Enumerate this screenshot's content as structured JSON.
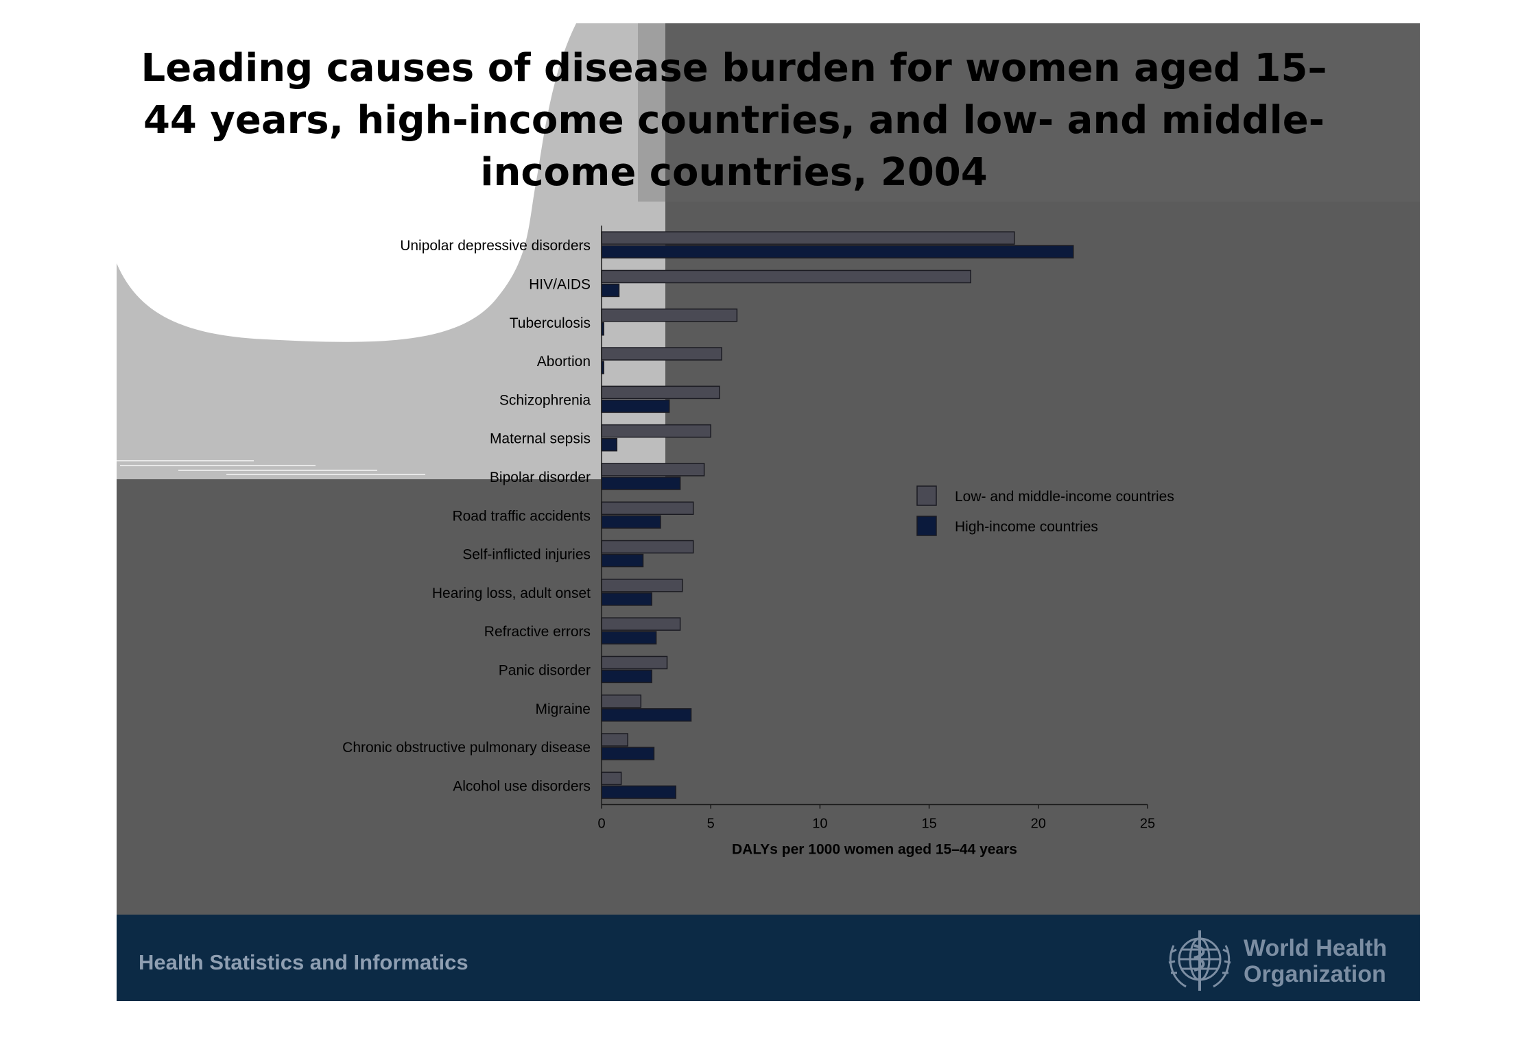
{
  "slide": {
    "title": "Leading causes of disease burden for women aged 15–44 years, high-income countries, and low- and middle-income countries, 2004",
    "footer_text": "Health Statistics and Informatics",
    "logo_text": [
      "World Health",
      "Organization"
    ],
    "icon": "who-emblem-icon"
  },
  "colors": {
    "slide_background": "#5b5b5b",
    "footer_background": "#0c2a45",
    "low_middle_income": "#4a4a54",
    "high_income": "#0b1a3c"
  },
  "chart_data": {
    "type": "bar",
    "orientation": "horizontal",
    "title": "",
    "xlabel": "DALYs per 1000 women aged 15–44 years",
    "ylabel": "",
    "xlim": [
      0,
      25
    ],
    "xticks": [
      0,
      5,
      10,
      15,
      20,
      25
    ],
    "grid": false,
    "legend_position": "right",
    "categories": [
      "Unipolar depressive disorders",
      "HIV/AIDS",
      "Tuberculosis",
      "Abortion",
      "Schizophrenia",
      "Maternal sepsis",
      "Bipolar disorder",
      "Road traffic accidents",
      "Self-inflicted injuries",
      "Hearing loss, adult onset",
      "Refractive errors",
      "Panic disorder",
      "Migraine",
      "Chronic obstructive pulmonary disease",
      "Alcohol use disorders"
    ],
    "series": [
      {
        "name": "Low- and middle-income countries",
        "values": [
          18.9,
          16.9,
          6.2,
          5.5,
          5.4,
          5.0,
          4.7,
          4.2,
          4.2,
          3.7,
          3.6,
          3.0,
          1.8,
          1.2,
          0.9
        ]
      },
      {
        "name": "High-income countries",
        "values": [
          21.6,
          0.8,
          0.1,
          0.1,
          3.1,
          0.7,
          3.6,
          2.7,
          1.9,
          2.3,
          2.5,
          2.3,
          4.1,
          2.4,
          3.4
        ]
      }
    ]
  }
}
